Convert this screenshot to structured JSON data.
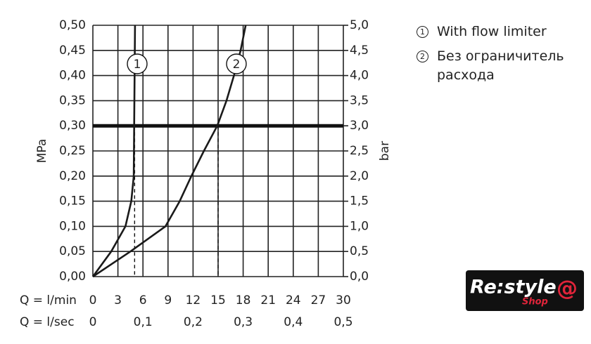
{
  "chart_data": {
    "type": "line",
    "y_label": "MPa",
    "y2_label": "bar",
    "x_label": "Q = l/min",
    "x2_label": "Q = l/sec",
    "xlim": [
      0,
      30
    ],
    "xticks": [
      0,
      3,
      6,
      9,
      12,
      15,
      18,
      21,
      24,
      27,
      30
    ],
    "x2lim": [
      0,
      0.5
    ],
    "x2ticks": [
      0,
      {
        "value": 0.1,
        "label": "0,1"
      },
      {
        "value": 0.2,
        "label": "0,2"
      },
      {
        "value": 0.3,
        "label": "0,3"
      },
      {
        "value": 0.4,
        "label": "0,4"
      },
      {
        "value": 0.5,
        "label": "0,5"
      }
    ],
    "ylim": [
      0,
      0.5
    ],
    "yticks": [
      {
        "value": 0,
        "label": "0,00"
      },
      {
        "value": 0.05,
        "label": "0,05"
      },
      {
        "value": 0.1,
        "label": "0,10"
      },
      {
        "value": 0.15,
        "label": "0,15"
      },
      {
        "value": 0.2,
        "label": "0,20"
      },
      {
        "value": 0.25,
        "label": "0,25"
      },
      {
        "value": 0.3,
        "label": "0,30"
      },
      {
        "value": 0.35,
        "label": "0,35"
      },
      {
        "value": 0.4,
        "label": "0,40"
      },
      {
        "value": 0.45,
        "label": "0,45"
      },
      {
        "value": 0.5,
        "label": "0,50"
      }
    ],
    "y2lim": [
      0,
      5
    ],
    "y2ticks": [
      {
        "value": 0,
        "label": "0,0"
      },
      {
        "value": 0.5,
        "label": "0,5"
      },
      {
        "value": 1,
        "label": "1,0"
      },
      {
        "value": 1.5,
        "label": "1,5"
      },
      {
        "value": 2,
        "label": "2,0"
      },
      {
        "value": 2.5,
        "label": "2,5"
      },
      {
        "value": 3,
        "label": "3,0"
      },
      {
        "value": 3.5,
        "label": "3,5"
      },
      {
        "value": 4,
        "label": "4,0"
      },
      {
        "value": 4.5,
        "label": "4,5"
      },
      {
        "value": 5,
        "label": "5,0"
      }
    ],
    "grid": true,
    "series": [
      {
        "name": "With flow limiter",
        "marker": "1",
        "color": "#1a1a1a",
        "x": [
          0,
          2.2,
          3.9,
          4.6,
          4.9,
          4.95,
          5.0,
          5.05
        ],
        "values": [
          0,
          0.05,
          0.1,
          0.15,
          0.2,
          0.3,
          0.4,
          0.5
        ]
      },
      {
        "name": "Без ограничитель расхода",
        "marker": "2",
        "color": "#1a1a1a",
        "x": [
          0,
          4.5,
          8.7,
          10.4,
          11.8,
          13.3,
          14.9,
          16.0,
          16.9,
          17.7,
          18.3
        ],
        "values": [
          0,
          0.05,
          0.1,
          0.15,
          0.2,
          0.25,
          0.3,
          0.35,
          0.4,
          0.45,
          0.5
        ]
      }
    ],
    "reference_line": 0.3,
    "drop_lines": {
      "x": [
        5,
        15
      ],
      "values": [
        0.3,
        0.3
      ]
    },
    "legend_position": "right"
  },
  "logo": {
    "text": "Re:style",
    "symbol": "@",
    "sub": "Shop"
  }
}
